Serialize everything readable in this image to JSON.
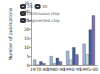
{
  "chart_data": {
    "type": "bar",
    "y_label": "Number of publications",
    "categories": [
      "1970-80",
      "1980-90",
      "1990-95",
      "1995-00"
    ],
    "series": [
      {
        "name": "2D",
        "color": "#9bbbd9",
        "values": [
          3,
          5,
          8,
          12
        ]
      },
      {
        "name": "3D",
        "color": "#d3dbea",
        "values": [
          0,
          1,
          3,
          6
        ]
      },
      {
        "name": "Continuous chip",
        "color": "#3b5f9b",
        "values": [
          2,
          4,
          10,
          20
        ]
      },
      {
        "name": "Segmented chip",
        "color": "#7a6fb0",
        "values": [
          1,
          2,
          6,
          28
        ]
      }
    ],
    "ylim": [
      0,
      35
    ],
    "yticks": [
      0,
      5,
      10,
      15,
      20,
      25,
      30,
      35
    ],
    "legend": "upper left",
    "grid": false
  }
}
